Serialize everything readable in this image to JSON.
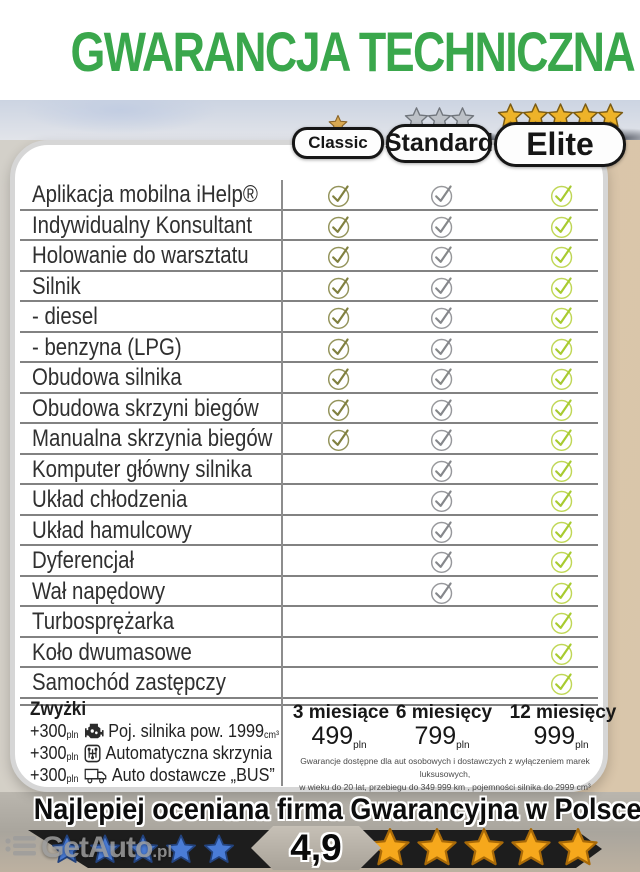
{
  "page_title": "GWARANCJA TECHNICZNA",
  "plans": [
    {
      "id": "classic",
      "label": "Classic",
      "stars": 1,
      "star_style": "gold-muted",
      "star_size": 20
    },
    {
      "id": "standard",
      "label": "Standard",
      "stars": 3,
      "star_style": "silver",
      "star_size": 25
    },
    {
      "id": "elite",
      "label": "Elite",
      "stars": 5,
      "star_style": "gold",
      "star_size": 27
    }
  ],
  "features": [
    {
      "label": "Aplikacja mobilna iHelp®",
      "classic": true,
      "standard": true,
      "elite": true
    },
    {
      "label": "Indywidualny Konsultant",
      "classic": true,
      "standard": true,
      "elite": true
    },
    {
      "label": "Holowanie do warsztatu",
      "classic": true,
      "standard": true,
      "elite": true
    },
    {
      "label": "Silnik",
      "classic": true,
      "standard": true,
      "elite": true
    },
    {
      "label": "- diesel",
      "classic": true,
      "standard": true,
      "elite": true
    },
    {
      "label": "- benzyna (LPG)",
      "classic": true,
      "standard": true,
      "elite": true
    },
    {
      "label": "Obudowa silnika",
      "classic": true,
      "standard": true,
      "elite": true
    },
    {
      "label": "Obudowa skrzyni biegów",
      "classic": true,
      "standard": true,
      "elite": true
    },
    {
      "label": "Manualna skrzynia biegów",
      "classic": true,
      "standard": true,
      "elite": true
    },
    {
      "label": "Komputer główny silnika",
      "classic": false,
      "standard": true,
      "elite": true
    },
    {
      "label": "Układ chłodzenia",
      "classic": false,
      "standard": true,
      "elite": true
    },
    {
      "label": "Układ hamulcowy",
      "classic": false,
      "standard": true,
      "elite": true
    },
    {
      "label": "Dyferencjał",
      "classic": false,
      "standard": true,
      "elite": true
    },
    {
      "label": "Wał napędowy",
      "classic": false,
      "standard": true,
      "elite": true
    },
    {
      "label": "Turbosprężarka",
      "classic": false,
      "standard": false,
      "elite": true
    },
    {
      "label": "Koło dwumasowe",
      "classic": false,
      "standard": false,
      "elite": true
    },
    {
      "label": "Samochód zastępczy",
      "classic": false,
      "standard": false,
      "elite": true
    }
  ],
  "surcharges": {
    "heading": "Zwyżki",
    "items": [
      {
        "amount": "+300",
        "unit": "pln",
        "icon": "engine-icon",
        "label": "Poj. silnika pow. 1999",
        "suffix": "cm³"
      },
      {
        "amount": "+300",
        "unit": "pln",
        "icon": "gearbox-icon",
        "label": "Automatyczna skrzynia",
        "suffix": ""
      },
      {
        "amount": "+300",
        "unit": "pln",
        "icon": "delivery-van-icon",
        "label": "Auto dostawcze „BUS”",
        "suffix": ""
      }
    ]
  },
  "pricing": [
    {
      "duration": "3 miesiące",
      "amount": "499",
      "unit": "pln"
    },
    {
      "duration": "6 miesięcy",
      "amount": "799",
      "unit": "pln"
    },
    {
      "duration": "12 miesięcy",
      "amount": "999",
      "unit": "pln"
    }
  ],
  "disclaimer": {
    "line1": "Gwarancje dostępne dla aut osobowych i dostawczych z wyłączeniem marek luksusowych,",
    "line2": "w wieku do 20 lat,  przebiegu do 349 999 km , pojemności silnika do 2999 cm³"
  },
  "footer": {
    "headline": "Najlepiej oceniana firma Gwarancyjna w Polsce",
    "rating": "4,9",
    "left_stars": 5,
    "right_stars": 5,
    "watermark": "GetAuto",
    "watermark_suffix": ".pl"
  },
  "colors": {
    "title_green": "#3aa74c",
    "classic_check": "#8e8e4e",
    "standard_check": "#8f9094",
    "elite_check": "#aecb35",
    "gold_star": "#eeb329",
    "silver_star": "#bdc1c7",
    "blue_star": "#4a7cd6",
    "orange_star": "#f6a81c",
    "ribbon_dark": "#1d1d1d"
  }
}
